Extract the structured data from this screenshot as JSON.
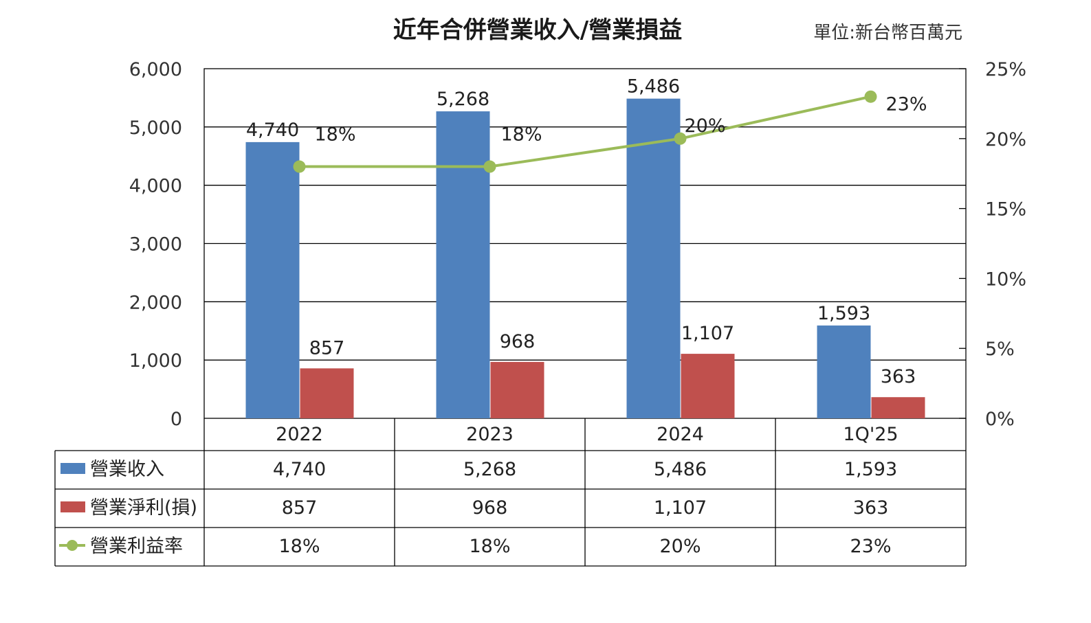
{
  "chart_data": {
    "type": "bar",
    "title": "近年合併營業收入/營業損益",
    "unit_label": "單位:新台幣百萬元",
    "categories": [
      "2022",
      "2023",
      "2024",
      "1Q'25"
    ],
    "series": [
      {
        "name": "營業收入",
        "type": "bar",
        "axis": "left",
        "color": "#4f81bd",
        "values": [
          4740,
          5268,
          5486,
          1593
        ],
        "labels": [
          "4,740",
          "5,268",
          "5,486",
          "1,593"
        ]
      },
      {
        "name": "營業淨利(損)",
        "type": "bar",
        "axis": "left",
        "color": "#c0504d",
        "values": [
          857,
          968,
          1107,
          363
        ],
        "labels": [
          "857",
          "968",
          "1,107",
          "363"
        ]
      },
      {
        "name": "營業利益率",
        "type": "line",
        "axis": "right",
        "color": "#9bbb59",
        "values": [
          18,
          18,
          20,
          23
        ],
        "labels": [
          "18%",
          "18%",
          "20%",
          "23%"
        ]
      }
    ],
    "y_left": {
      "ylim": [
        0,
        6000
      ],
      "ticks": [
        "0",
        "1,000",
        "2,000",
        "3,000",
        "4,000",
        "5,000",
        "6,000"
      ]
    },
    "y_right": {
      "ylim": [
        0,
        25
      ],
      "ticks": [
        "0%",
        "5%",
        "10%",
        "15%",
        "20%",
        "25%"
      ]
    },
    "grid": true,
    "legend": "data-table"
  }
}
